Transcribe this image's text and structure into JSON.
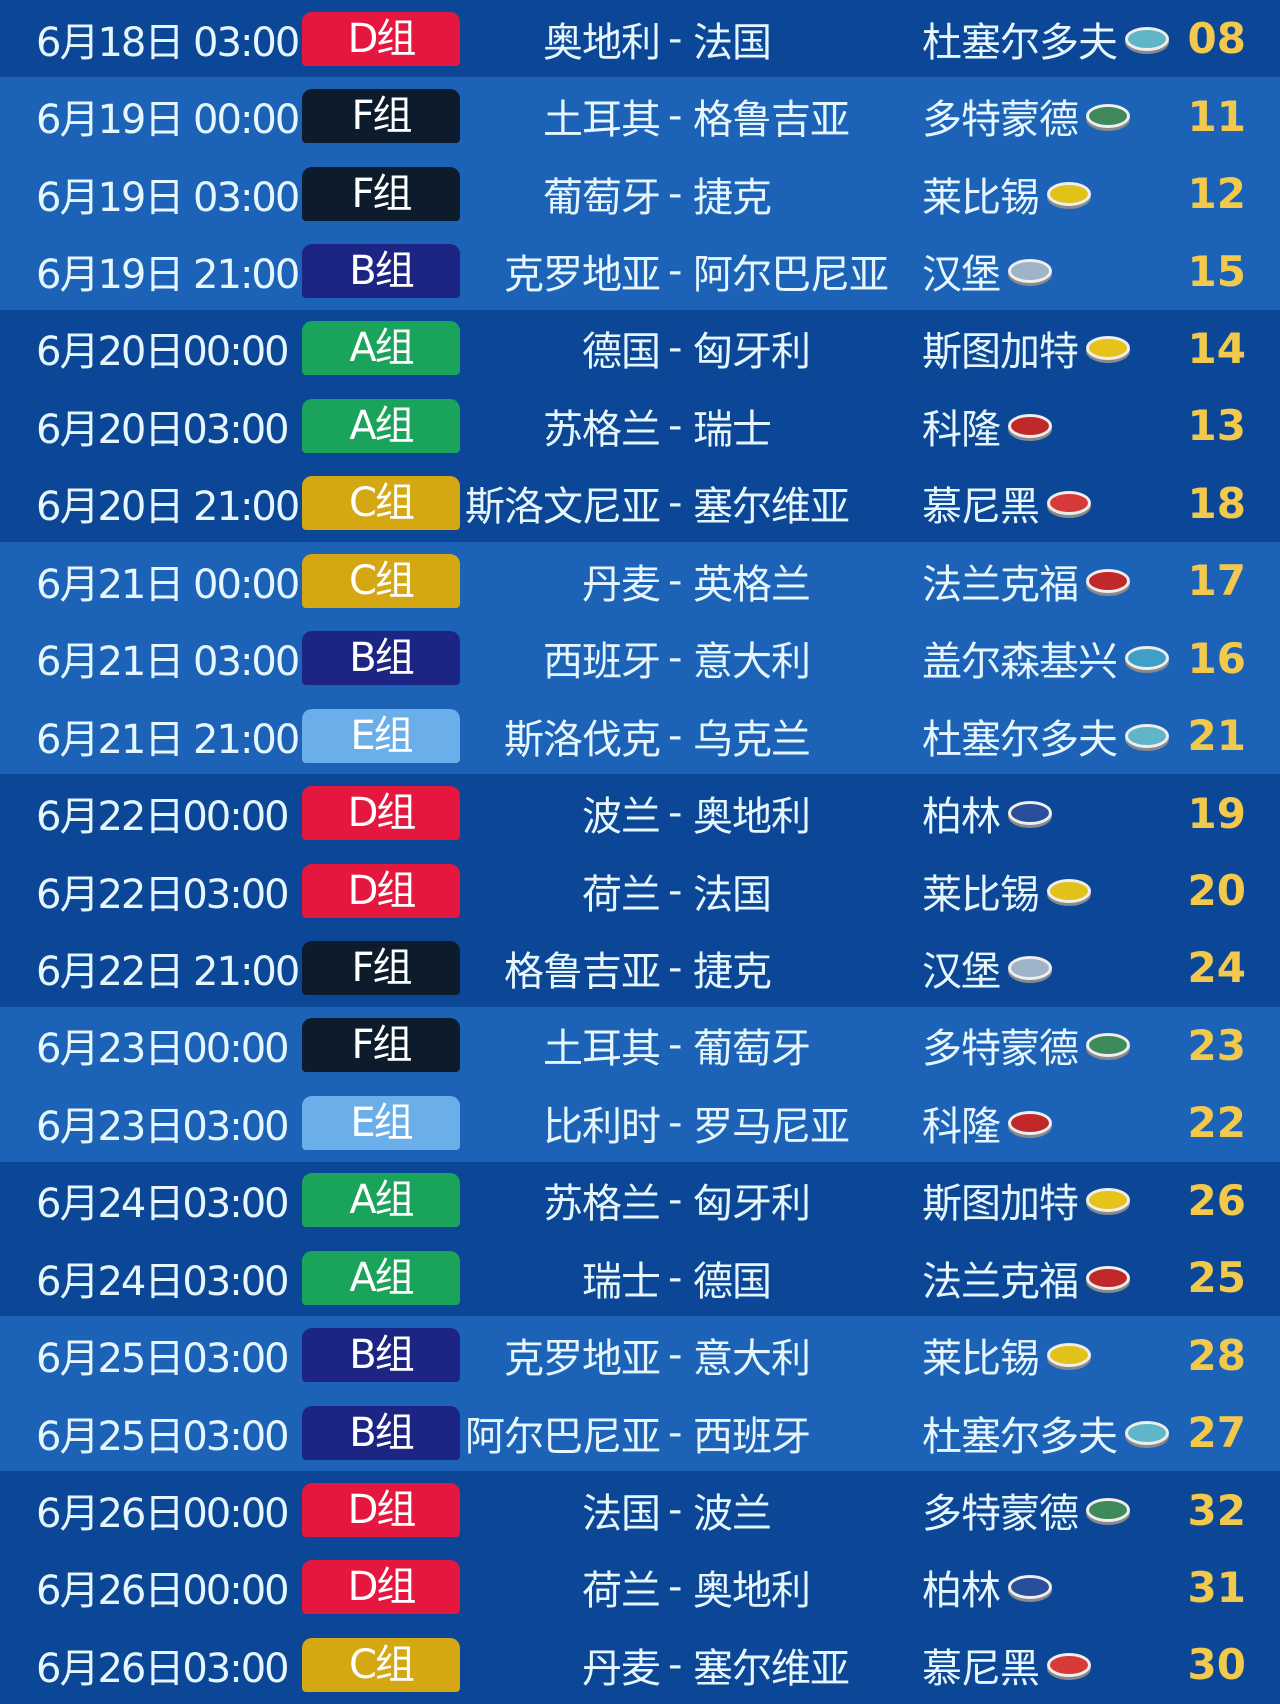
{
  "colors": {
    "A": "#1aa35a",
    "B": "#1c2484",
    "C": "#d4a713",
    "D": "#e5173f",
    "E": "#6aaeea",
    "F": "#0c1c2c",
    "number": "#f2c94c"
  },
  "stadium_colors": {
    "杜塞尔多夫": "#5fb6c9",
    "多特蒙德": "#3e8a5a",
    "莱比锡": "#e0c21a",
    "汉堡": "#9fb4c8",
    "斯图加特": "#e6c31a",
    "科隆": "#c0282a",
    "慕尼黑": "#d83a3a",
    "法兰克福": "#c0282a",
    "盖尔森基兴": "#3e9fc9",
    "柏林": "#2a4f9a"
  },
  "matches": [
    {
      "date": "6月18日 03:00",
      "group": "D",
      "group_label": "D组",
      "team1": "奥地利",
      "team2": "法国",
      "venue": "杜塞尔多夫",
      "number": "08",
      "shade": "dark"
    },
    {
      "date": "6月19日 00:00",
      "group": "F",
      "group_label": "F组",
      "team1": "土耳其",
      "team2": "格鲁吉亚",
      "venue": "多特蒙德",
      "number": "11",
      "shade": "light"
    },
    {
      "date": "6月19日 03:00",
      "group": "F",
      "group_label": "F组",
      "team1": "葡萄牙",
      "team2": "捷克",
      "venue": "莱比锡",
      "number": "12",
      "shade": "light"
    },
    {
      "date": "6月19日 21:00",
      "group": "B",
      "group_label": "B组",
      "team1": "克罗地亚",
      "team2": "阿尔巴尼亚",
      "venue": "汉堡",
      "number": "15",
      "shade": "light"
    },
    {
      "date": "6月20日00:00",
      "group": "A",
      "group_label": "A组",
      "team1": "德国",
      "team2": "匈牙利",
      "venue": "斯图加特",
      "number": "14",
      "shade": "dark"
    },
    {
      "date": "6月20日03:00",
      "group": "A",
      "group_label": "A组",
      "team1": "苏格兰",
      "team2": "瑞士",
      "venue": "科隆",
      "number": "13",
      "shade": "dark"
    },
    {
      "date": "6月20日 21:00",
      "group": "C",
      "group_label": "C组",
      "team1": "斯洛文尼亚",
      "team2": "塞尔维亚",
      "venue": "慕尼黑",
      "number": "18",
      "shade": "dark"
    },
    {
      "date": "6月21日 00:00",
      "group": "C",
      "group_label": "C组",
      "team1": "丹麦",
      "team2": "英格兰",
      "venue": "法兰克福",
      "number": "17",
      "shade": "light"
    },
    {
      "date": "6月21日 03:00",
      "group": "B",
      "group_label": "B组",
      "team1": "西班牙",
      "team2": "意大利",
      "venue": "盖尔森基兴",
      "number": "16",
      "shade": "light"
    },
    {
      "date": "6月21日 21:00",
      "group": "E",
      "group_label": "E组",
      "team1": "斯洛伐克",
      "team2": "乌克兰",
      "venue": "杜塞尔多夫",
      "number": "21",
      "shade": "light"
    },
    {
      "date": "6月22日00:00",
      "group": "D",
      "group_label": "D组",
      "team1": "波兰",
      "team2": "奥地利",
      "venue": "柏林",
      "number": "19",
      "shade": "dark"
    },
    {
      "date": "6月22日03:00",
      "group": "D",
      "group_label": "D组",
      "team1": "荷兰",
      "team2": "法国",
      "venue": "莱比锡",
      "number": "20",
      "shade": "dark"
    },
    {
      "date": "6月22日 21:00",
      "group": "F",
      "group_label": "F组",
      "team1": "格鲁吉亚",
      "team2": "捷克",
      "venue": "汉堡",
      "number": "24",
      "shade": "dark"
    },
    {
      "date": "6月23日00:00",
      "group": "F",
      "group_label": "F组",
      "team1": "土耳其",
      "team2": "葡萄牙",
      "venue": "多特蒙德",
      "number": "23",
      "shade": "light"
    },
    {
      "date": "6月23日03:00",
      "group": "E",
      "group_label": "E组",
      "team1": "比利时",
      "team2": "罗马尼亚",
      "venue": "科隆",
      "number": "22",
      "shade": "light"
    },
    {
      "date": "6月24日03:00",
      "group": "A",
      "group_label": "A组",
      "team1": "苏格兰",
      "team2": "匈牙利",
      "venue": "斯图加特",
      "number": "26",
      "shade": "dark"
    },
    {
      "date": "6月24日03:00",
      "group": "A",
      "group_label": "A组",
      "team1": "瑞士",
      "team2": "德国",
      "venue": "法兰克福",
      "number": "25",
      "shade": "dark"
    },
    {
      "date": "6月25日03:00",
      "group": "B",
      "group_label": "B组",
      "team1": "克罗地亚",
      "team2": "意大利",
      "venue": "莱比锡",
      "number": "28",
      "shade": "light"
    },
    {
      "date": "6月25日03:00",
      "group": "B",
      "group_label": "B组",
      "team1": "阿尔巴尼亚",
      "team2": "西班牙",
      "venue": "杜塞尔多夫",
      "number": "27",
      "shade": "light"
    },
    {
      "date": "6月26日00:00",
      "group": "D",
      "group_label": "D组",
      "team1": "法国",
      "team2": "波兰",
      "venue": "多特蒙德",
      "number": "32",
      "shade": "dark"
    },
    {
      "date": "6月26日00:00",
      "group": "D",
      "group_label": "D组",
      "team1": "荷兰",
      "team2": "奥地利",
      "venue": "柏林",
      "number": "31",
      "shade": "dark"
    },
    {
      "date": "6月26日03:00",
      "group": "C",
      "group_label": "C组",
      "team1": "丹麦",
      "team2": "塞尔维亚",
      "venue": "慕尼黑",
      "number": "30",
      "shade": "dark"
    }
  ],
  "separator": "-"
}
